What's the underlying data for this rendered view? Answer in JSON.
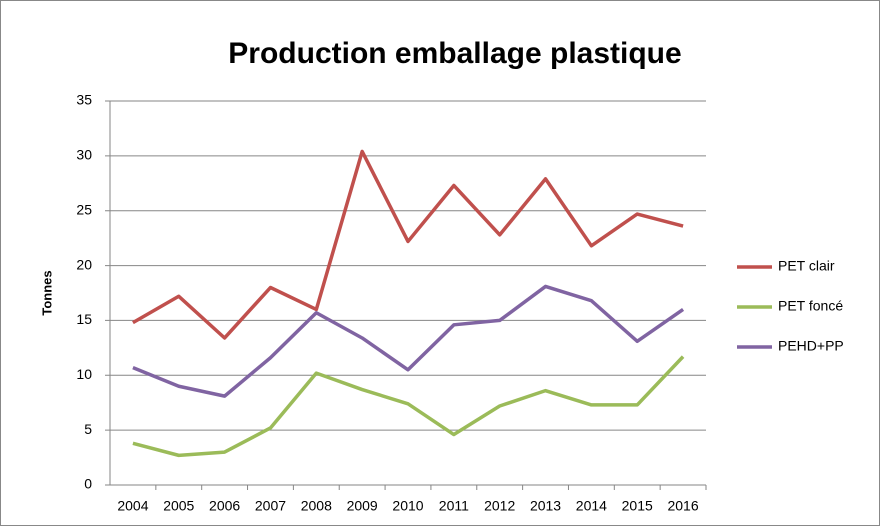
{
  "chart_data": {
    "type": "line",
    "title": "Production emballage plastique",
    "y_label": "Tonnes",
    "categories": [
      "2004",
      "2005",
      "2006",
      "2007",
      "2008",
      "2009",
      "2010",
      "2011",
      "2012",
      "2013",
      "2014",
      "2015",
      "2016"
    ],
    "series": [
      {
        "name": "PET clair",
        "color": "#c0504d",
        "values": [
          14.8,
          17.2,
          13.4,
          18.0,
          16.0,
          30.4,
          22.2,
          27.3,
          22.8,
          27.9,
          21.8,
          24.7,
          23.6
        ]
      },
      {
        "name": "PET foncé",
        "color": "#9bbb59",
        "values": [
          3.8,
          2.7,
          3.0,
          5.2,
          10.2,
          8.7,
          7.4,
          4.6,
          7.2,
          8.6,
          7.3,
          7.3,
          11.7
        ]
      },
      {
        "name": "PEHD+PP",
        "color": "#8064a2",
        "values": [
          10.7,
          9.0,
          8.1,
          11.6,
          15.7,
          13.4,
          10.5,
          14.6,
          15.0,
          18.1,
          16.8,
          13.1,
          16.0
        ]
      }
    ],
    "ylim": [
      0,
      35
    ],
    "yticks": [
      0,
      5,
      10,
      15,
      20,
      25,
      30,
      35
    ],
    "grid": true,
    "legend": "right"
  }
}
